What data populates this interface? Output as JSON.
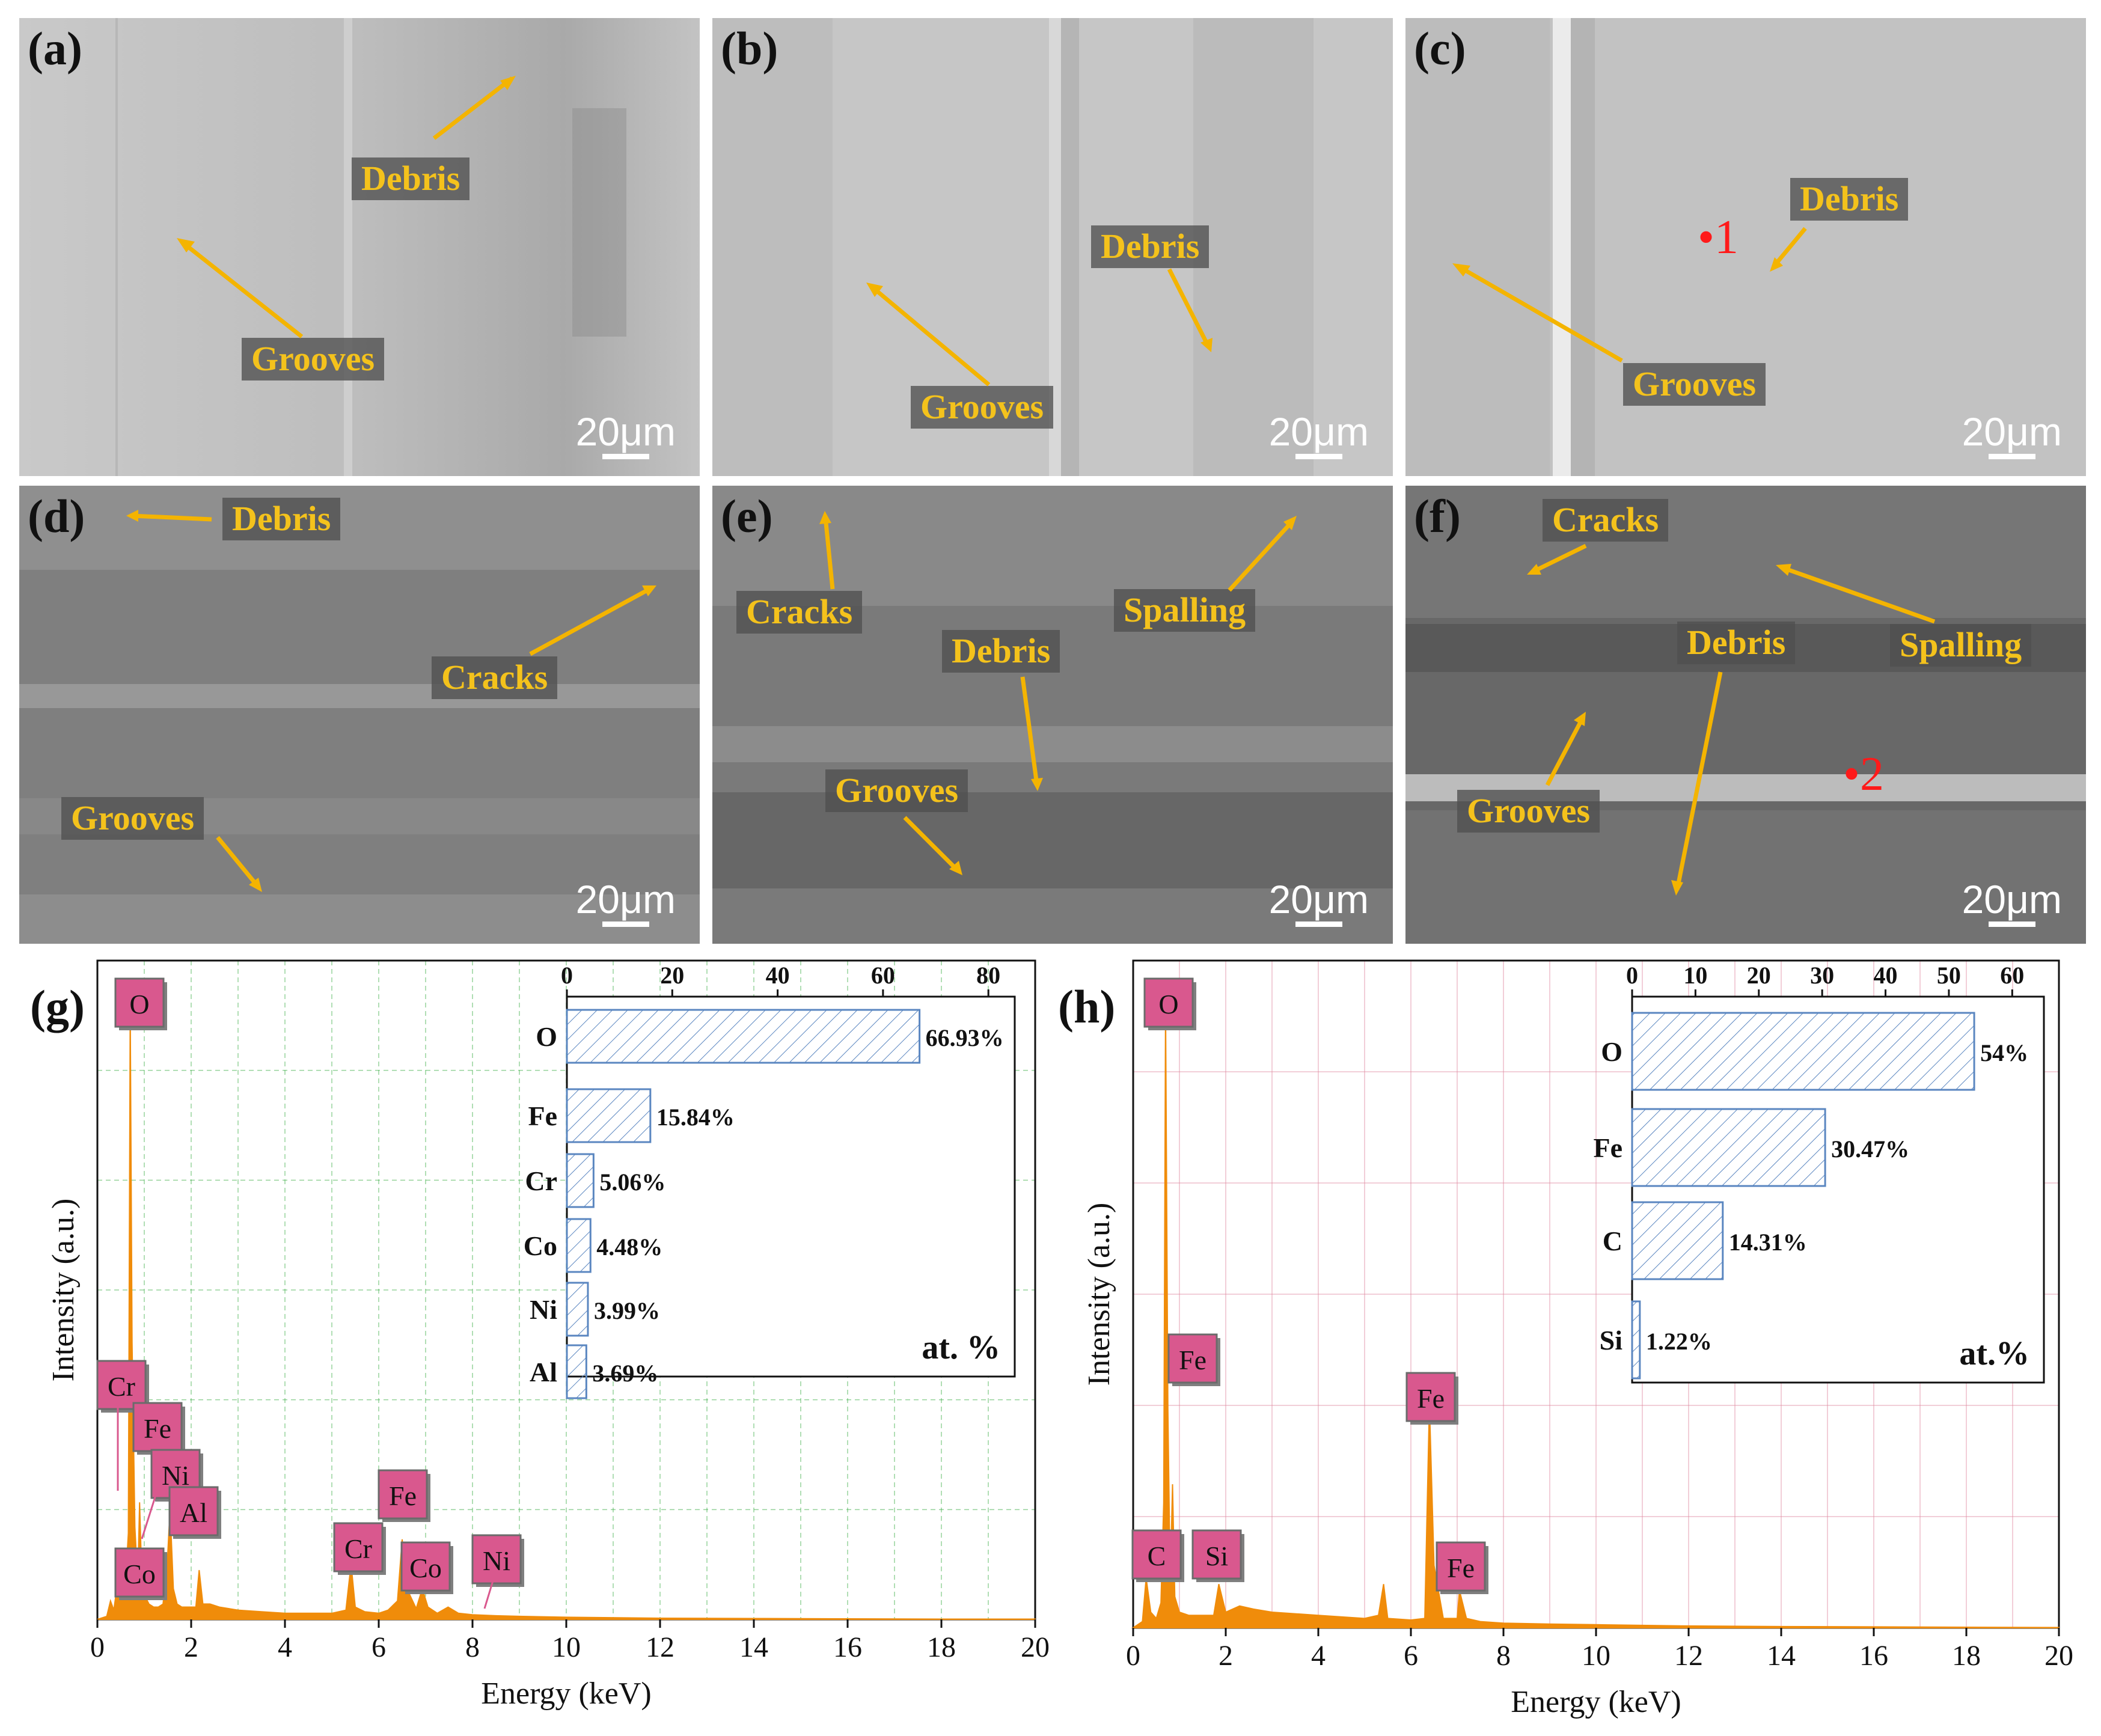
{
  "figure": {
    "sem_panels": [
      {
        "label": "(a)",
        "scale": "20μm",
        "annotations": [
          "Debris",
          "Grooves"
        ]
      },
      {
        "label": "(b)",
        "scale": "20μm",
        "annotations": [
          "Debris",
          "Grooves"
        ]
      },
      {
        "label": "(c)",
        "scale": "20μm",
        "annotations": [
          "Debris",
          "Grooves"
        ],
        "point": "1"
      },
      {
        "label": "(d)",
        "scale": "20μm",
        "annotations": [
          "Debris",
          "Cracks",
          "Grooves"
        ]
      },
      {
        "label": "(e)",
        "scale": "20μm",
        "annotations": [
          "Cracks",
          "Spalling",
          "Debris",
          "Grooves"
        ]
      },
      {
        "label": "(f)",
        "scale": "20μm",
        "annotations": [
          "Cracks",
          "Spalling",
          "Debris",
          "Grooves"
        ],
        "point": "2"
      }
    ],
    "eds_labels": [
      "(g)",
      "(h)"
    ]
  },
  "chart_data": [
    {
      "panel": "(g)",
      "type": "line",
      "title": "",
      "xlabel": "Energy (keV)",
      "ylabel": "Intensity (a.u.)",
      "xlim": [
        0,
        20
      ],
      "xticks": [
        0,
        2,
        4,
        6,
        8,
        10,
        12,
        14,
        16,
        18,
        20
      ],
      "series": [
        {
          "name": "spectrum",
          "color": "#f08c0a",
          "x": [
            0,
            0.2,
            0.28,
            0.35,
            0.45,
            0.52,
            0.6,
            0.66,
            0.7,
            0.74,
            0.8,
            0.86,
            0.9,
            0.95,
            1.0,
            1.1,
            1.2,
            1.3,
            1.4,
            1.49,
            1.55,
            1.62,
            1.7,
            1.8,
            1.95,
            2.1,
            2.17,
            2.25,
            2.4,
            2.6,
            3,
            3.5,
            4,
            4.5,
            5,
            5.3,
            5.41,
            5.5,
            5.7,
            6.0,
            6.2,
            6.4,
            6.5,
            6.6,
            6.8,
            6.93,
            7.05,
            7.25,
            7.48,
            7.7,
            8.0,
            8.5,
            9,
            10,
            12,
            14,
            16,
            18,
            20
          ],
          "y": [
            0,
            1,
            6,
            3,
            14,
            5,
            12,
            28,
            200,
            90,
            30,
            12,
            38,
            12,
            8,
            5,
            4,
            4,
            5,
            18,
            36,
            10,
            5,
            4,
            4,
            4,
            16,
            5,
            5,
            4,
            3,
            2.5,
            2,
            2,
            2,
            3,
            18,
            4,
            2.5,
            2,
            3,
            6,
            26,
            10,
            3.5,
            10,
            4,
            2,
            4,
            2,
            1.5,
            1.2,
            1,
            0.7,
            0.4,
            0.3,
            0.2,
            0.1,
            0.1
          ]
        }
      ],
      "peak_labels": [
        "O",
        "Cr",
        "Fe",
        "Ni",
        "Al",
        "Co",
        "Cr",
        "Fe",
        "Co",
        "Ni"
      ],
      "inset": {
        "type": "bar",
        "orientation": "horizontal",
        "categories": [
          "O",
          "Fe",
          "Cr",
          "Co",
          "Ni",
          "Al"
        ],
        "values": [
          66.93,
          15.84,
          5.06,
          4.48,
          3.99,
          3.69
        ],
        "value_labels": [
          "66.93%",
          "15.84%",
          "5.06%",
          "4.48%",
          "3.99%",
          "3.69%"
        ],
        "xlim": [
          0,
          85
        ],
        "xticks": [
          0,
          20,
          40,
          60,
          80
        ],
        "unit_label": "at. %"
      }
    },
    {
      "panel": "(h)",
      "type": "line",
      "title": "",
      "xlabel": "Energy (keV)",
      "ylabel": "Intensity (a.u.)",
      "xlim": [
        0,
        20
      ],
      "xticks": [
        0,
        2,
        4,
        6,
        8,
        10,
        12,
        14,
        16,
        18,
        20
      ],
      "series": [
        {
          "name": "spectrum",
          "color": "#f08c0a",
          "x": [
            0,
            0.2,
            0.28,
            0.38,
            0.5,
            0.6,
            0.66,
            0.7,
            0.75,
            0.8,
            0.85,
            0.9,
            1.0,
            1.2,
            1.5,
            1.74,
            1.85,
            2.0,
            2.3,
            2.6,
            3,
            4,
            5,
            5.3,
            5.41,
            5.5,
            6.0,
            6.3,
            6.4,
            6.5,
            6.7,
            7.0,
            7.05,
            7.2,
            7.5,
            8,
            9,
            10,
            12,
            14,
            16,
            18,
            20
          ],
          "y": [
            0,
            2,
            16,
            5,
            3,
            8,
            40,
            200,
            70,
            14,
            46,
            10,
            5,
            4,
            4,
            4,
            14,
            5,
            7,
            6,
            5,
            4,
            3,
            4,
            14,
            3,
            2.5,
            3,
            72,
            20,
            3,
            3,
            12,
            3,
            2,
            1.5,
            1.2,
            1,
            0.6,
            0.4,
            0.3,
            0.2,
            0.1
          ]
        }
      ],
      "peak_labels": [
        "O",
        "Fe",
        "Fe",
        "C",
        "Si",
        "Fe"
      ],
      "inset": {
        "type": "bar",
        "orientation": "horizontal",
        "categories": [
          "O",
          "Fe",
          "C",
          "Si"
        ],
        "values": [
          54,
          30.47,
          14.31,
          1.22
        ],
        "value_labels": [
          "54%",
          "30.47%",
          "14.31%",
          "1.22%"
        ],
        "xlim": [
          0,
          65
        ],
        "xticks": [
          0,
          10,
          20,
          30,
          40,
          50,
          60
        ],
        "unit_label": "at.%"
      }
    }
  ]
}
